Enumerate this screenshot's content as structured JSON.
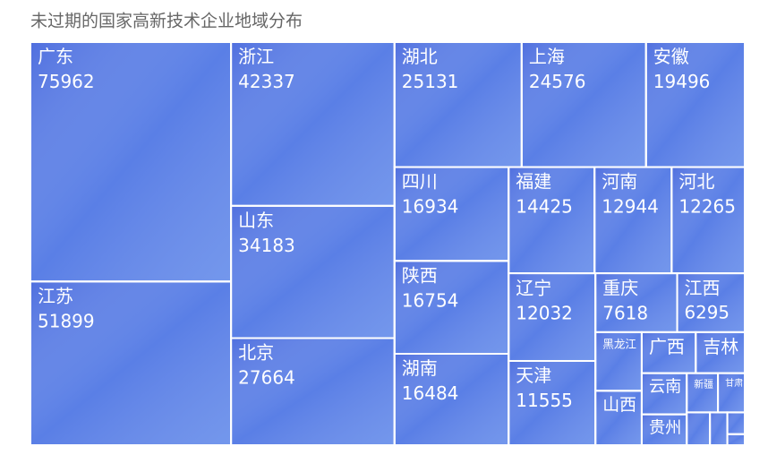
{
  "chart_data": {
    "type": "treemap",
    "title": "未过期的国家高新技术企业地域分布",
    "color": "#5a7fe6",
    "categories": [
      "广东",
      "江苏",
      "浙江",
      "山东",
      "北京",
      "湖北",
      "上海",
      "安徽",
      "四川",
      "陕西",
      "湖南",
      "福建",
      "河南",
      "河北",
      "辽宁",
      "天津",
      "重庆",
      "江西",
      "黑龙江",
      "山西",
      "广西",
      "吉林",
      "云南",
      "贵州",
      "新疆",
      "甘肃",
      null,
      null,
      null,
      null
    ],
    "values": [
      75962,
      51899,
      42337,
      34183,
      27664,
      25131,
      24576,
      19496,
      16934,
      16754,
      16484,
      14425,
      12944,
      12265,
      12032,
      11555,
      7618,
      6295,
      4290,
      3975,
      3500,
      3170,
      2934,
      2190,
      1934,
      1660,
      1200,
      900,
      600,
      300
    ]
  }
}
